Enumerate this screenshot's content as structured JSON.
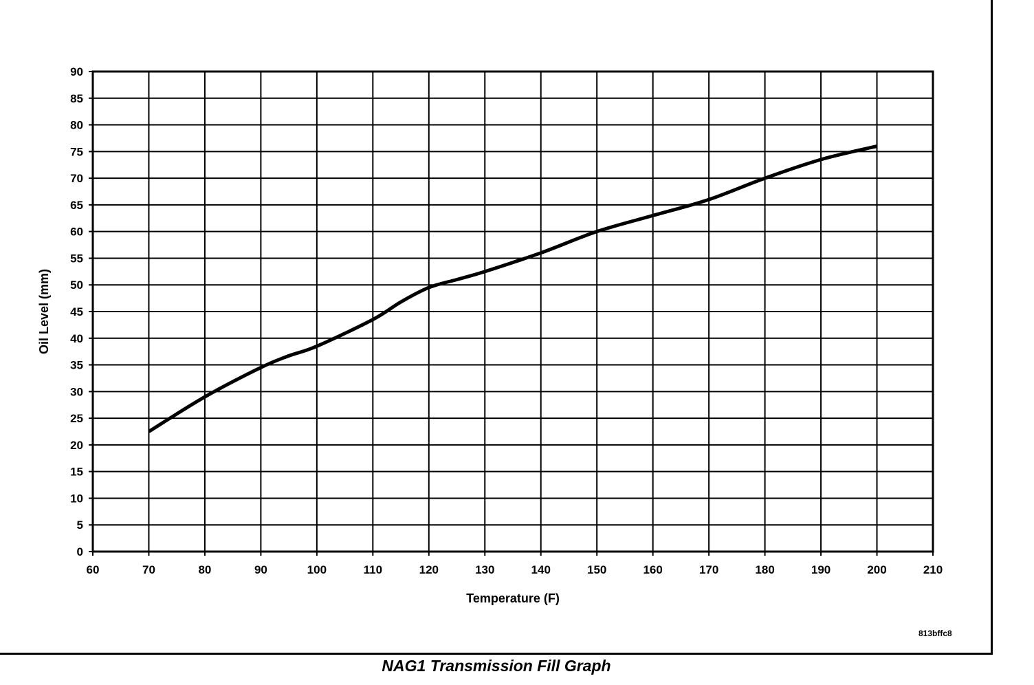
{
  "chart_data": {
    "type": "line",
    "title": "NAG1 Transmission Fill Graph",
    "xlabel": "Temperature (F)",
    "ylabel": "Oil Level (mm)",
    "xlim": [
      60,
      210
    ],
    "ylim": [
      0,
      90
    ],
    "xticks": [
      60,
      70,
      80,
      90,
      100,
      110,
      120,
      130,
      140,
      150,
      160,
      170,
      180,
      190,
      200,
      210
    ],
    "yticks": [
      0,
      5,
      10,
      15,
      20,
      25,
      30,
      35,
      40,
      45,
      50,
      55,
      60,
      65,
      70,
      75,
      80,
      85,
      90
    ],
    "grid": true,
    "series": [
      {
        "name": "Oil Level",
        "x": [
          70,
          80,
          90,
          95,
          100,
          110,
          115,
          120,
          125,
          130,
          140,
          150,
          160,
          170,
          180,
          190,
          200
        ],
        "y": [
          22.5,
          29,
          34.5,
          36.7,
          38.5,
          43.5,
          46.8,
          49.5,
          51,
          52.5,
          56,
          60,
          63,
          66,
          70,
          73.5,
          76
        ]
      }
    ],
    "figure_id": "813bffc8"
  }
}
